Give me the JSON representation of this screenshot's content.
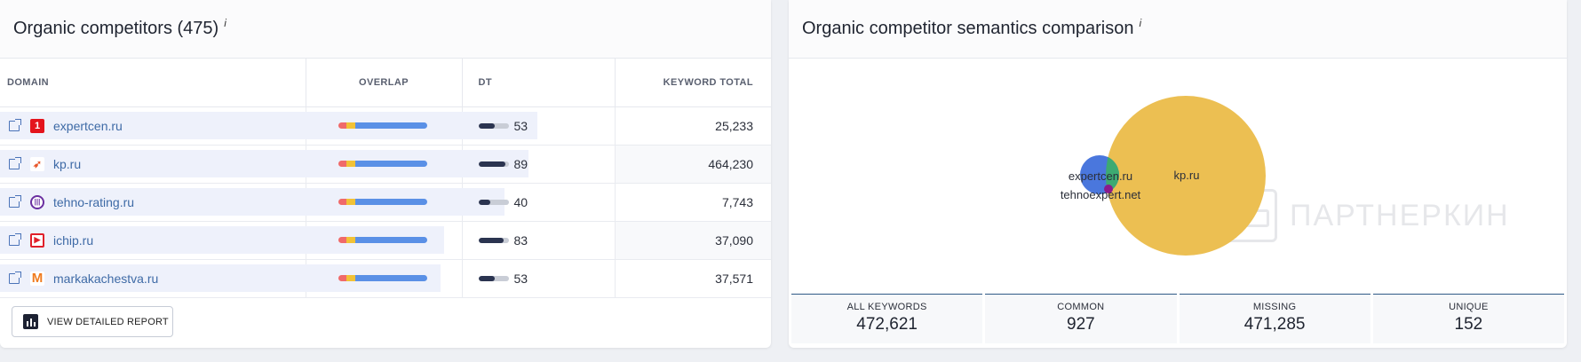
{
  "left": {
    "title": "Organic competitors (475)",
    "info": "i",
    "columns": {
      "domain": "DOMAIN",
      "overlap": "OVERLAP",
      "dt": "DT",
      "keyword_total": "KEYWORD TOTAL"
    },
    "rows": [
      {
        "domain": "expertcen.ru",
        "dt": "53",
        "dt_fraction": 0.53,
        "keyword_total": "25,233",
        "row_fill": 0.697,
        "favicon": "1",
        "favicon_color": "#e4141c"
      },
      {
        "domain": "kp.ru",
        "dt": "89",
        "dt_fraction": 0.89,
        "keyword_total": "464,230",
        "row_fill": 0.686,
        "favicon": "➶",
        "favicon_color": "#ffffff"
      },
      {
        "domain": "tehno-rating.ru",
        "dt": "40",
        "dt_fraction": 0.4,
        "keyword_total": "7,743",
        "row_fill": 0.654,
        "favicon": "|||",
        "favicon_color": "#6a2fa0"
      },
      {
        "domain": "ichip.ru",
        "dt": "83",
        "dt_fraction": 0.83,
        "keyword_total": "37,090",
        "row_fill": 0.576,
        "favicon": "▶",
        "favicon_color": "#e0202a"
      },
      {
        "domain": "markakachestva.ru",
        "dt": "53",
        "dt_fraction": 0.53,
        "keyword_total": "37,571",
        "row_fill": 0.572,
        "favicon": "M",
        "favicon_color": "#ffffff"
      }
    ],
    "report_button": "VIEW DETAILED REPORT"
  },
  "right": {
    "title": "Organic competitor semantics comparison",
    "info": "i",
    "venn_labels": {
      "expertcen": "expertcen.ru",
      "kp": "kp.ru",
      "tehnoexpert": "tehnoexpert.net"
    },
    "venn_colors": {
      "kp": "#ecbf52",
      "expertcen": "#4a77dd",
      "common": "#3daa72",
      "tehnoexpert": "#8a1a8c"
    },
    "watermark": "ПАРТНЕРКИН",
    "stats": [
      {
        "label": "ALL KEYWORDS",
        "value": "472,621"
      },
      {
        "label": "COMMON",
        "value": "927"
      },
      {
        "label": "MISSING",
        "value": "471,285"
      },
      {
        "label": "UNIQUE",
        "value": "152"
      }
    ]
  }
}
